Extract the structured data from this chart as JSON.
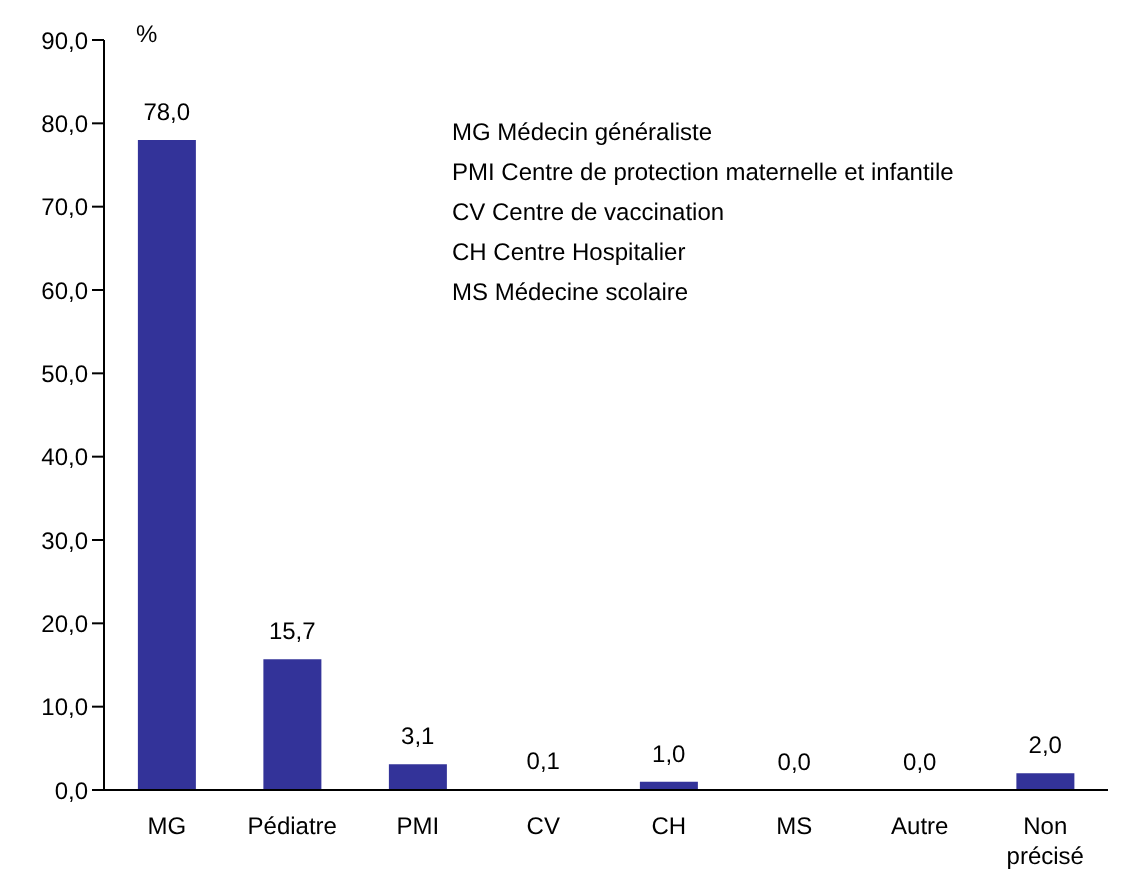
{
  "chart_data": {
    "type": "bar",
    "ylabel": "%",
    "categories": [
      "MG",
      "Pédiatre",
      "PMI",
      "CV",
      "CH",
      "MS",
      "Autre",
      "Non précisé"
    ],
    "values": [
      78.0,
      15.7,
      3.1,
      0.1,
      1.0,
      0.0,
      0.0,
      2.0
    ],
    "value_labels": [
      "78,0",
      "15,7",
      "3,1",
      "0,1",
      "1,0",
      "0,0",
      "0,0",
      "2,0"
    ],
    "color": "#333399",
    "ylim": [
      0,
      90
    ],
    "yticks": [
      {
        "value": 0,
        "label": "0,0"
      },
      {
        "value": 10,
        "label": "10,0"
      },
      {
        "value": 20,
        "label": "20,0"
      },
      {
        "value": 30,
        "label": "30,0"
      },
      {
        "value": 40,
        "label": "40,0"
      },
      {
        "value": 50,
        "label": "50,0"
      },
      {
        "value": 60,
        "label": "60,0"
      },
      {
        "value": 70,
        "label": "70,0"
      },
      {
        "value": 80,
        "label": "80,0"
      },
      {
        "value": 90,
        "label": "90,0"
      }
    ],
    "grid": false,
    "annotations": [
      "MG  Médecin généraliste",
      "PMI  Centre de protection maternelle et infantile",
      "CV  Centre de vaccination",
      "CH   Centre Hospitalier",
      "MS  Médecine scolaire"
    ]
  }
}
